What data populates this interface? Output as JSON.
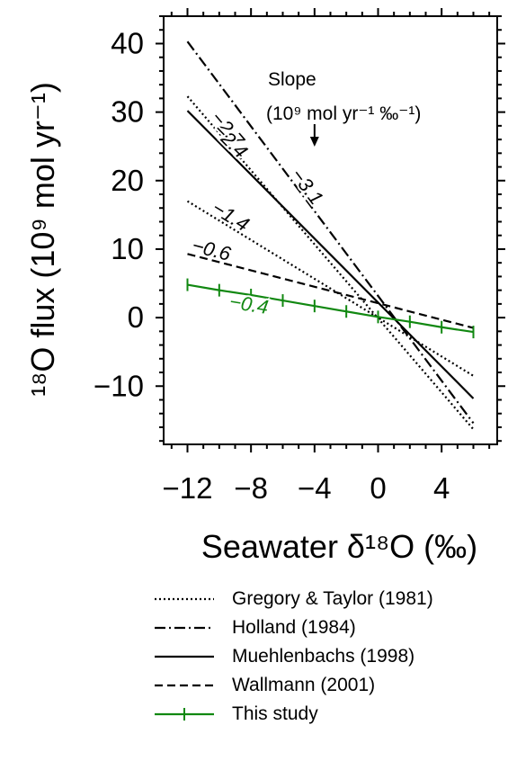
{
  "chart_data": {
    "type": "line",
    "xlabel": "Seawater δ¹⁸O (‰)",
    "ylabel": "¹⁸O flux (10⁹ mol yr⁻¹)",
    "xlim": [
      -13.5,
      7.5
    ],
    "ylim": [
      -18.5,
      44
    ],
    "x_ticks": [
      -12,
      -8,
      -4,
      0,
      4
    ],
    "x_tick_labels": [
      "−12",
      "−8",
      "−4",
      "0",
      "4"
    ],
    "y_ticks": [
      -10,
      0,
      10,
      20,
      30,
      40
    ],
    "y_tick_labels": [
      "−10",
      "0",
      "10",
      "20",
      "30",
      "40"
    ],
    "grid": false,
    "legend_position": "below",
    "slope_header": {
      "line1": "Slope",
      "line2": "(10⁹ mol yr⁻¹ ‰⁻¹)"
    },
    "series": [
      {
        "name": "Gregory & Taylor (1981)",
        "style": "dotted",
        "color": "#000000",
        "x": [
          -12,
          6
        ],
        "y": [
          32.3,
          -16.3
        ],
        "slope_label": "−2.7"
      },
      {
        "name": "Gregory & Taylor (1981)",
        "style": "dotted",
        "color": "#000000",
        "x": [
          -12,
          6
        ],
        "y": [
          17.0,
          -8.5
        ],
        "slope_label": "−1.4"
      },
      {
        "name": "Holland (1984)",
        "style": "dashdot",
        "color": "#000000",
        "x": [
          -12,
          6
        ],
        "y": [
          40.3,
          -15.4
        ],
        "slope_label": "−3.1"
      },
      {
        "name": "Muehlenbachs (1998)",
        "style": "solid",
        "color": "#000000",
        "x": [
          -12,
          6
        ],
        "y": [
          30.2,
          -11.8
        ],
        "slope_label": "−2.4"
      },
      {
        "name": "Wallmann (2001)",
        "style": "dashed",
        "color": "#000000",
        "x": [
          -12,
          6
        ],
        "y": [
          9.3,
          -1.5
        ],
        "slope_label": "−0.6"
      },
      {
        "name": "This study",
        "style": "solid-markers",
        "color": "#118811",
        "x": [
          -12,
          -10,
          -8,
          -6,
          -4,
          -2,
          0,
          2,
          4,
          6
        ],
        "y": [
          4.8,
          4.0,
          3.3,
          2.5,
          1.7,
          0.9,
          0.1,
          -0.6,
          -1.4,
          -2.1
        ],
        "slope_label": "−0.4"
      }
    ]
  },
  "legend": [
    {
      "label": "Gregory & Taylor (1981)",
      "style": "dotted",
      "color": "#000000"
    },
    {
      "label": "Holland (1984)",
      "style": "dashdot",
      "color": "#000000"
    },
    {
      "label": "Muehlenbachs (1998)",
      "style": "solid",
      "color": "#000000"
    },
    {
      "label": "Wallmann (2001)",
      "style": "dashed",
      "color": "#000000"
    },
    {
      "label": "This study",
      "style": "solid-markers",
      "color": "#118811"
    }
  ]
}
